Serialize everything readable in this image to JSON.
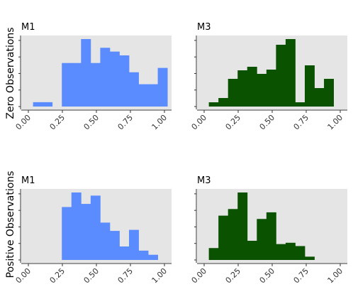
{
  "chart_data": {
    "type": "histogram-grid",
    "row_labels": [
      "Zero Observations",
      "Positive Observations"
    ],
    "column_labels": [
      "M1",
      "M3"
    ],
    "x_ticks": [
      "0.00",
      "0.25",
      "0.50",
      "0.75",
      "1.00"
    ],
    "xlim": [
      0,
      1
    ],
    "y_ticks_visible": false,
    "colors": {
      "M1": "#5A8CFF",
      "M3": "#0A5200",
      "panel_bg": "#E5E5E5"
    },
    "panels": [
      {
        "row": "Zero Observations",
        "column": "M1",
        "color": "#5A8CFF",
        "bin_start": 0.0345,
        "bin_width": 0.0705,
        "ylim": [
          0,
          6.2
        ],
        "counts": [
          0.4,
          0.4,
          0,
          4,
          4,
          6.2,
          4,
          5.4,
          5.05,
          4.7,
          3.15,
          2.05,
          2.05,
          3.55
        ]
      },
      {
        "row": "Zero Observations",
        "column": "M3",
        "color": "#0A5200",
        "bin_start": 0.0345,
        "bin_width": 0.0705,
        "ylim": [
          0,
          9.5
        ],
        "counts": [
          0.6,
          1.2,
          3.9,
          5.1,
          5.6,
          4.6,
          5.2,
          8.7,
          9.5,
          0.6,
          5.8,
          2.6,
          3.9
        ]
      },
      {
        "row": "Positive Observations",
        "column": "M1",
        "color": "#5A8CFF",
        "bin_start": 0.0345,
        "bin_width": 0.0705,
        "ylim": [
          0,
          6.5
        ],
        "counts": [
          0,
          0,
          0,
          5.1,
          6.5,
          5.4,
          6.2,
          3.6,
          2.8,
          1.3,
          2.9,
          0.9,
          0.5
        ]
      },
      {
        "row": "Positive Observations",
        "column": "M3",
        "color": "#0A5200",
        "bin_start": 0.0345,
        "bin_width": 0.0705,
        "ylim": [
          0,
          10.2
        ],
        "counts": [
          1.8,
          6.7,
          7.7,
          10.2,
          2.9,
          6.2,
          7.2,
          2.4,
          2.6,
          2.1,
          0.5
        ]
      }
    ]
  }
}
